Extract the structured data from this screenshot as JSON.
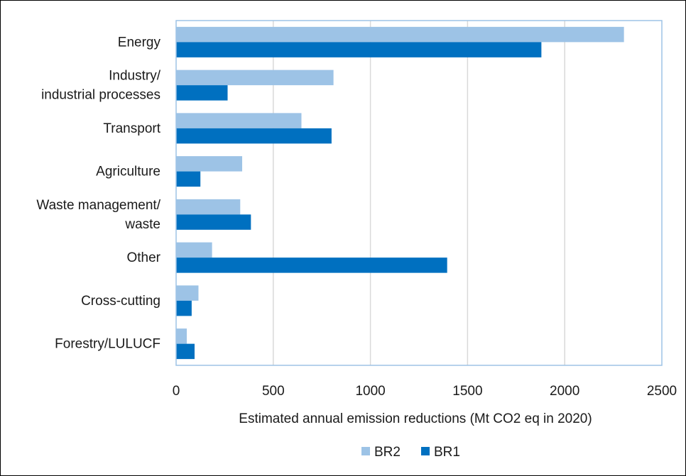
{
  "chart_data": {
    "type": "bar",
    "orientation": "horizontal",
    "title": "",
    "xlabel": "Estimated annual emission reductions (Mt CO2 eq in 2020)",
    "ylabel": "",
    "xlim": [
      0,
      2500
    ],
    "xticks": [
      0,
      500,
      1000,
      1500,
      2000,
      2500
    ],
    "grid": true,
    "legend_position": "bottom",
    "categories": [
      [
        "Energy"
      ],
      [
        "Industry/",
        "industrial processes"
      ],
      [
        "Transport"
      ],
      [
        "Agriculture"
      ],
      [
        "Waste management/",
        "waste"
      ],
      [
        "Other"
      ],
      [
        "Cross-cutting"
      ],
      [
        "Forestry/LULUCF"
      ]
    ],
    "series": [
      {
        "name": "BR2",
        "color": "#9dc3e6",
        "values": [
          2305,
          810,
          645,
          340,
          330,
          185,
          115,
          55
        ]
      },
      {
        "name": "BR1",
        "color": "#0070c0",
        "values": [
          1880,
          265,
          800,
          125,
          385,
          1395,
          80,
          95
        ]
      }
    ],
    "plot_border_color": "#9dc3e6",
    "gridline_color": "#d9d9d9"
  }
}
